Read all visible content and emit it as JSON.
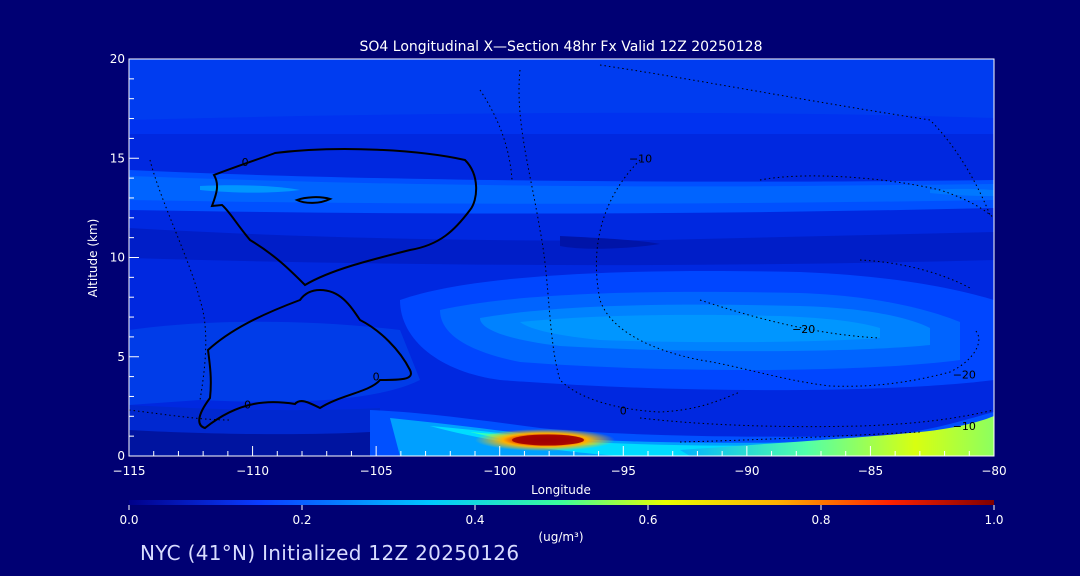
{
  "chart_data": {
    "type": "heatmap",
    "title": "SO4 Longitudinal X—Section 48hr  Fx Valid 12Z 20250128",
    "xlabel": "Longitude",
    "ylabel": "Altitude (km)",
    "xlim": [
      -115,
      -80
    ],
    "ylim": [
      0,
      20
    ],
    "xticks": [
      -115,
      -110,
      -105,
      -100,
      -95,
      -90,
      -85,
      -80
    ],
    "xtick_labels": [
      "−115",
      "−110",
      "−105",
      "−100",
      "−95",
      "−90",
      "−85",
      "−80"
    ],
    "yticks": [
      0,
      5,
      10,
      15,
      20
    ],
    "ytick_labels": [
      "0",
      "5",
      "10",
      "15",
      "20"
    ],
    "colorbar": {
      "min": 0.0,
      "max": 1.0,
      "ticks": [
        0.0,
        0.2,
        0.4,
        0.6,
        0.8,
        1.0
      ],
      "tick_labels": [
        "0.0",
        "0.2",
        "0.4",
        "0.6",
        "0.8",
        "1.0"
      ],
      "units_label": "(ug/m³)"
    },
    "contour_labels": [
      {
        "text": "0",
        "lon": -110.3,
        "alt": 14.8
      },
      {
        "text": "0",
        "lon": -110.2,
        "alt": 2.6
      },
      {
        "text": "0",
        "lon": -105.0,
        "alt": 4.0
      },
      {
        "text": "0",
        "lon": -95.0,
        "alt": 2.3
      },
      {
        "text": "−10",
        "lon": -94.3,
        "alt": 15.0
      },
      {
        "text": "−20",
        "lon": -87.7,
        "alt": 6.4
      },
      {
        "text": "−20",
        "lon": -81.2,
        "alt": 4.1
      },
      {
        "text": "−10",
        "lon": -81.2,
        "alt": 1.5
      }
    ],
    "features": [
      {
        "name": "upper-layer",
        "lon_range": [
          -115,
          -80
        ],
        "alt_range": [
          12.0,
          14.5
        ],
        "peak_so4": 0.25
      },
      {
        "name": "mid-level-layer",
        "lon_range": [
          -106,
          -81
        ],
        "alt_range": [
          4.0,
          8.5
        ],
        "peak_so4": 0.3
      },
      {
        "name": "boundary-layer-plume",
        "lon_range": [
          -105,
          -80
        ],
        "alt_range": [
          0.0,
          2.0
        ],
        "peak_so4": 1.0,
        "peak_lon": -98,
        "peak_alt": 0.7
      },
      {
        "name": "eastern-surface-layer",
        "lon_range": [
          -90,
          -80
        ],
        "alt_range": [
          0.0,
          2.0
        ],
        "peak_so4": 0.6
      }
    ]
  },
  "footer": "NYC (41°N) Initialized 12Z 20250126",
  "colors": {
    "background": "#000073",
    "axes": "#ffffff",
    "text": "#d8dcff"
  }
}
